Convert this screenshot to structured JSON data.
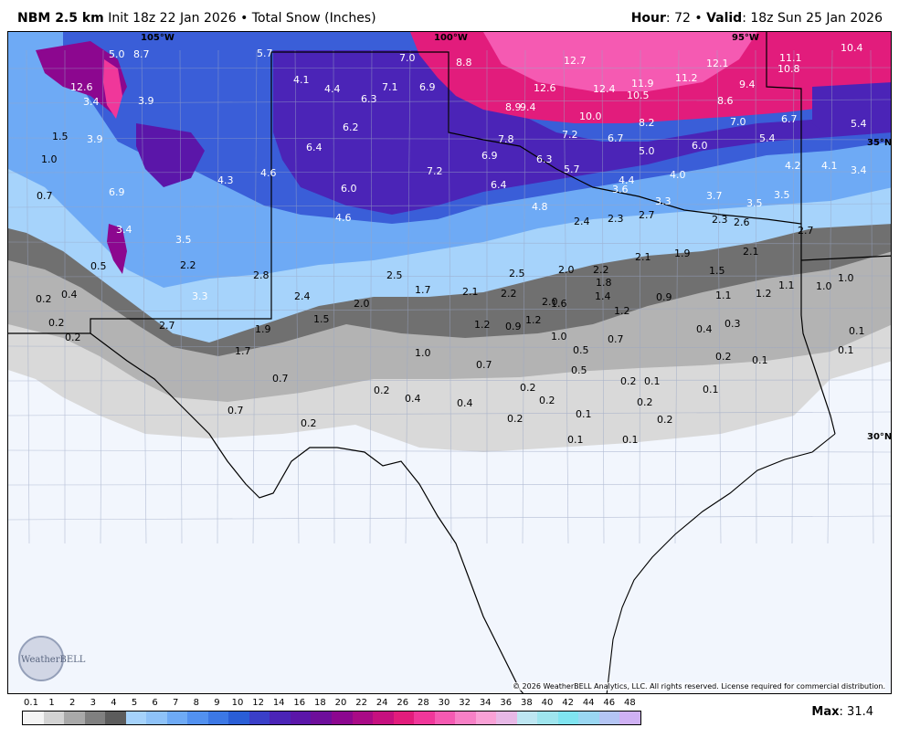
{
  "header": {
    "model": "NBM 2.5 km",
    "init": "Init 18z 22 Jan 2026",
    "product": "Total Snow (Inches)",
    "hour_label": "Hour",
    "hour_value": ": 72",
    "valid_label": "Valid",
    "valid_value": ": 18z Sun 25 Jan 2026"
  },
  "map": {
    "lon_labels": [
      "105°W",
      "100°W",
      "95°W"
    ],
    "lat_labels": [
      "35°N",
      "30°N"
    ],
    "copyright": "© 2026 WeatherBELL Analytics, LLC. All rights reserved. License required for commercial distribution.",
    "logo_text": "WeatherBELL",
    "snow_values": [
      "5.0",
      "8.7",
      "5.7",
      "7.0",
      "8.8",
      "12.7",
      "12.1",
      "11.1",
      "10.8",
      "10.4",
      "4.1",
      "4.4",
      "6.3",
      "7.1",
      "6.9",
      "12.6",
      "12.4",
      "11.9",
      "11.2",
      "9.4",
      "12.6",
      "3.4",
      "3.9",
      "8.9",
      "9.4",
      "10.5",
      "8.6",
      "10.0",
      "8.2",
      "7.0",
      "6.7",
      "5.4",
      "6.2",
      "7.8",
      "7.2",
      "6.7",
      "6.0",
      "5.4",
      "1.5",
      "3.9",
      "6.4",
      "6.9",
      "6.3",
      "5.0",
      "4.2",
      "4.1",
      "3.4",
      "1.0",
      "7.2",
      "5.7",
      "4.3",
      "4.6",
      "6.4",
      "4.4",
      "4.0",
      "3.6",
      "0.7",
      "6.9",
      "6.0",
      "4.6",
      "4.8",
      "3.3",
      "3.7",
      "3.5",
      "3.5",
      "2.4",
      "2.3",
      "2.7",
      "2.3",
      "2.6",
      "2.7",
      "3.4",
      "3.5",
      "1.9",
      "2.1",
      "2.5",
      "2.5",
      "2.0",
      "2.2",
      "2.8",
      "1.8",
      "1.5",
      "2.1",
      "1.1",
      "1.2",
      "1.1",
      "1.0",
      "1.0",
      "0.5",
      "2.2",
      "0.2",
      "0.4",
      "2.4",
      "1.7",
      "2.1",
      "2.2",
      "2.0",
      "1.4",
      "3.3",
      "2.0",
      "1.6",
      "1.2",
      "0.9",
      "1.5",
      "1.2",
      "0.9",
      "1.2",
      "0.4",
      "0.3",
      "0.2",
      "2.7",
      "1.9",
      "1.0",
      "0.7",
      "0.1",
      "0.2",
      "1.0",
      "0.7",
      "0.5",
      "0.2",
      "0.1",
      "1.7",
      "0.1",
      "0.7",
      "0.5",
      "0.2",
      "0.2",
      "0.1",
      "0.2",
      "0.4",
      "0.1",
      "0.4",
      "0.2",
      "0.2",
      "0.7",
      "0.2",
      "0.2",
      "0.1",
      "0.2",
      "0.1",
      "0.1"
    ]
  },
  "legend": {
    "ticks": [
      "0.1",
      "1",
      "2",
      "3",
      "4",
      "5",
      "6",
      "7",
      "8",
      "9",
      "10",
      "12",
      "14",
      "16",
      "18",
      "20",
      "22",
      "24",
      "26",
      "28",
      "30",
      "32",
      "34",
      "36",
      "38",
      "40",
      "42",
      "44",
      "46",
      "48"
    ],
    "colors": [
      "#f4f4f4",
      "#d3d3d3",
      "#a9a9a9",
      "#808080",
      "#5c5c5c",
      "#a5d2fb",
      "#8ec2f8",
      "#6eaaf5",
      "#5291f0",
      "#3c78e5",
      "#2a5ed6",
      "#3a3fc8",
      "#4b24b7",
      "#5b16a9",
      "#6e0e9b",
      "#8c078f",
      "#a90a86",
      "#c6107f",
      "#e21c7c",
      "#f0379a",
      "#f55ab2",
      "#f780c6",
      "#f9a1d6",
      "#e7b8e6",
      "#bee6f2",
      "#9fe5ee",
      "#80e4f0",
      "#9ad7f2",
      "#b4c5f4",
      "#cfb1f4"
    ],
    "max_label": "Max",
    "max_value": ": 31.4"
  }
}
